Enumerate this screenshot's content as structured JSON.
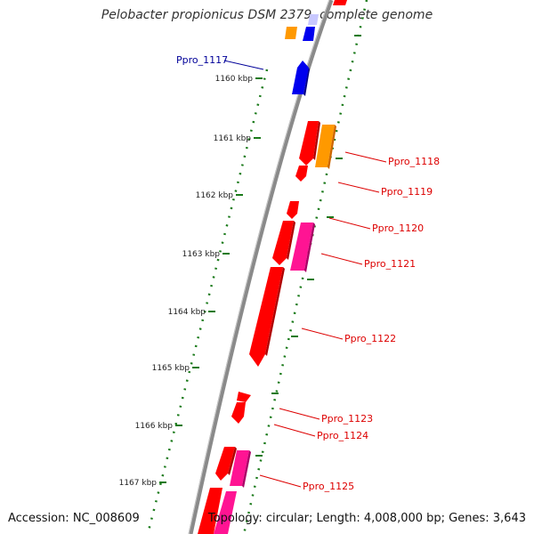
{
  "title": "Pelobacter propionicus DSM 2379, complete genome",
  "footer": {
    "accession": "Accession: NC_008609",
    "summary": "Topology: circular; Length: 4,008,000 bp; Genes: 3,643"
  },
  "colors": {
    "backbone": "#888888",
    "ticks": "#1a7a1a",
    "label_red": "#dd0000",
    "label_blue": "#000099",
    "gene_red": "#ff0000",
    "gene_orange": "#ff9900",
    "gene_blue": "#0000ee",
    "gene_pink": "#ff1493"
  },
  "scale_ticks": [
    "1160 kbp",
    "1161 kbp",
    "1162 kbp",
    "1163 kbp",
    "1164 kbp",
    "1165 kbp",
    "1166 kbp",
    "1167 kbp"
  ],
  "gene_labels": [
    {
      "text": "Ppro_1117",
      "color": "#000099"
    },
    {
      "text": "Ppro_1118",
      "color": "#dd0000"
    },
    {
      "text": "Ppro_1119",
      "color": "#dd0000"
    },
    {
      "text": "Ppro_1120",
      "color": "#dd0000"
    },
    {
      "text": "Ppro_1121",
      "color": "#dd0000"
    },
    {
      "text": "Ppro_1122",
      "color": "#dd0000"
    },
    {
      "text": "Ppro_1123",
      "color": "#dd0000"
    },
    {
      "text": "Ppro_1124",
      "color": "#dd0000"
    },
    {
      "text": "Ppro_1125",
      "color": "#dd0000"
    }
  ]
}
